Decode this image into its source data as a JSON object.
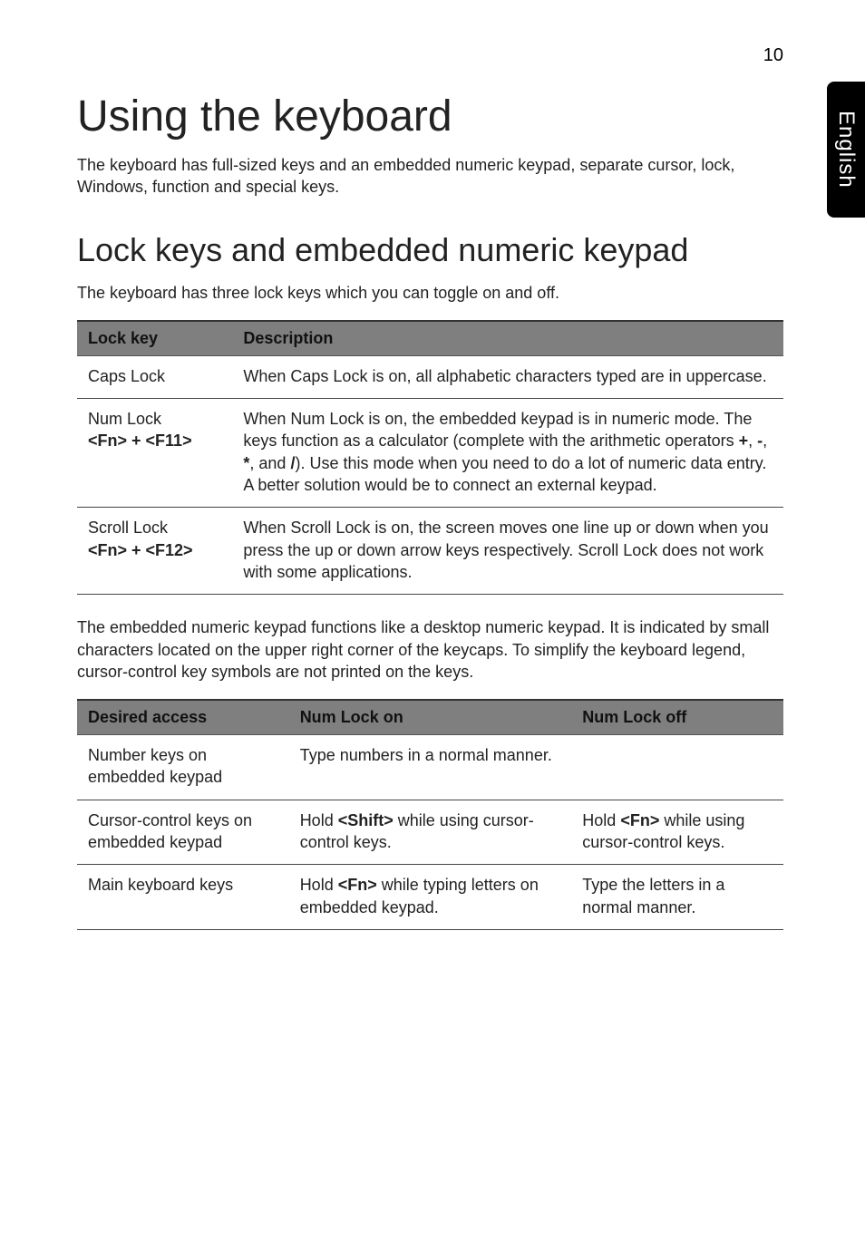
{
  "page_number": "10",
  "side_tab": "English",
  "h1": "Using the keyboard",
  "intro": "The keyboard has full-sized keys and an embedded numeric keypad, separate cursor, lock, Windows, function and special keys.",
  "h2": "Lock keys and embedded numeric keypad",
  "sub_intro": "The keyboard has three lock keys which you can toggle on and off.",
  "table1": {
    "headers": {
      "c1": "Lock key",
      "c2": "Description"
    },
    "rows": [
      {
        "key_line1": "Caps Lock",
        "key_line2": "",
        "desc_pre": "When Caps Lock is on, all alphabetic characters typed are in uppercase.",
        "op1": "",
        "op_mid1": "",
        "op2": "",
        "op_mid2": "",
        "op3": "",
        "op_mid3": "",
        "op4": "",
        "desc_post": ""
      },
      {
        "key_line1": "Num Lock",
        "key_line2": "<Fn> + <F11>",
        "desc_pre": "When Num Lock is on, the embedded keypad is in numeric mode. The keys function as a calculator (complete with the arithmetic operators ",
        "op1": "+",
        "op_mid1": ", ",
        "op2": "-",
        "op_mid2": ", ",
        "op3": "*",
        "op_mid3": ", and ",
        "op4": "/",
        "desc_post": "). Use this mode when you need to do a lot of numeric data entry. A better solution would be to connect an external keypad."
      },
      {
        "key_line1": "Scroll Lock",
        "key_line2": "<Fn> + <F12>",
        "desc_pre": "When Scroll Lock is on, the screen moves one line up or down when you press the up or down arrow keys respectively. Scroll Lock does not work with some applications.",
        "op1": "",
        "op_mid1": "",
        "op2": "",
        "op_mid2": "",
        "op3": "",
        "op_mid3": "",
        "op4": "",
        "desc_post": ""
      }
    ]
  },
  "mid_para": "The embedded numeric keypad functions like a desktop numeric keypad. It is indicated by small characters located on the upper right corner of the keycaps. To simplify the keyboard legend, cursor-control key symbols are not printed on the keys.",
  "table2": {
    "headers": {
      "c1": "Desired access",
      "c2": "Num Lock on",
      "c3": "Num Lock off"
    },
    "rows": [
      {
        "c1": "Number keys on embedded keypad",
        "c2_pre": "Type numbers in a normal manner.",
        "c2_key": "",
        "c2_post": "",
        "c3_pre": "",
        "c3_key": "",
        "c3_post": ""
      },
      {
        "c1": "Cursor-control keys on embedded keypad",
        "c2_pre": "Hold ",
        "c2_key": "<Shift>",
        "c2_post": " while using cursor-control keys.",
        "c3_pre": "Hold ",
        "c3_key": "<Fn>",
        "c3_post": " while using cursor-control keys."
      },
      {
        "c1": "Main keyboard keys",
        "c2_pre": "Hold ",
        "c2_key": "<Fn>",
        "c2_post": " while typing letters on embedded keypad.",
        "c3_pre": "Type the letters in a normal manner.",
        "c3_key": "",
        "c3_post": ""
      }
    ]
  }
}
